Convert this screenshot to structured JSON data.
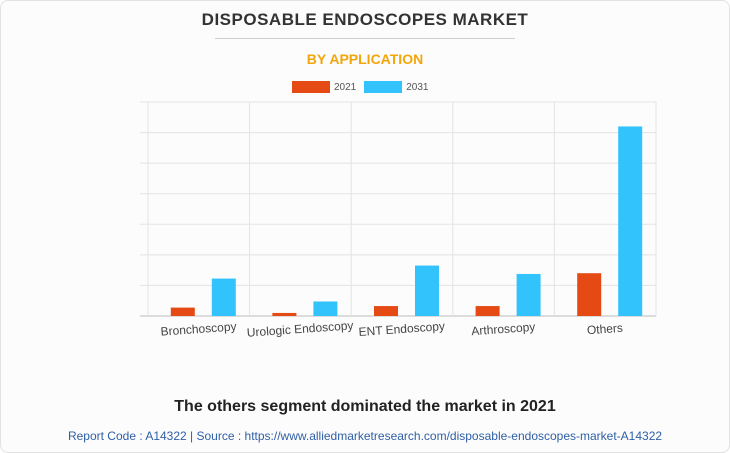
{
  "header": {
    "title": "DISPOSABLE ENDOSCOPES MARKET",
    "subtitle": "BY APPLICATION"
  },
  "chart_data": {
    "type": "bar",
    "categories": [
      "Bronchoscopy",
      "Urologic Endoscopy",
      "ENT Endoscopy",
      "Arthroscopy",
      "Others"
    ],
    "series": [
      {
        "name": "2021",
        "color": "#e54a14",
        "values": [
          1.1,
          0.4,
          1.3,
          1.3,
          5.6
        ]
      },
      {
        "name": "2031",
        "color": "#33c3fc",
        "values": [
          4.9,
          1.9,
          6.6,
          5.5,
          24.8
        ]
      }
    ],
    "ylim": [
      0,
      28
    ],
    "y_gridlines": 7,
    "legend_position": "top-center",
    "grid": true,
    "y_tick_labels_visible": false
  },
  "footer": {
    "caption": "The others segment dominated the market in 2021",
    "source": "Report Code : A14322  |  Source : https://www.alliedmarketresearch.com/disposable-endoscopes-market-A14322"
  }
}
